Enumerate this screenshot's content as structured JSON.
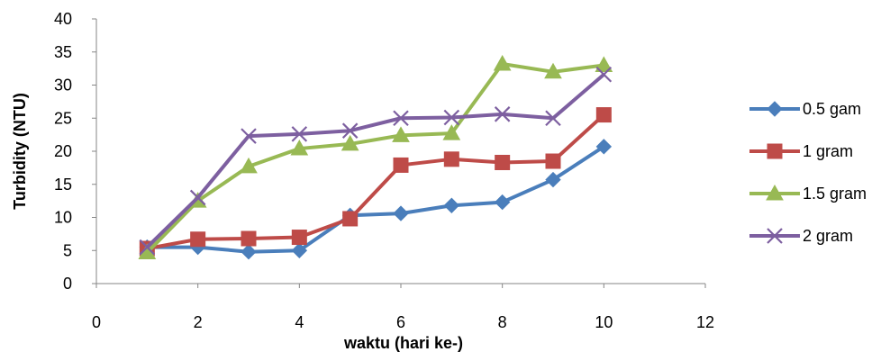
{
  "chart_data": {
    "type": "line",
    "title": "",
    "xlabel": "waktu (hari ke-)",
    "ylabel": "Turbidity (NTU)",
    "xlim": [
      0,
      12
    ],
    "ylim": [
      0,
      40
    ],
    "xticks": [
      0,
      2,
      4,
      6,
      8,
      10,
      12
    ],
    "yticks": [
      0,
      5,
      10,
      15,
      20,
      25,
      30,
      35,
      40
    ],
    "grid": false,
    "legend_position": "right",
    "x": [
      1,
      2,
      3,
      4,
      5,
      6,
      7,
      8,
      9,
      10
    ],
    "series": [
      {
        "name": "0.5 gam",
        "color": "#4a7ebb",
        "marker": "diamond",
        "values": [
          5.5,
          5.5,
          4.8,
          5.0,
          10.3,
          10.6,
          11.8,
          12.3,
          15.7,
          20.7
        ]
      },
      {
        "name": "1 gram",
        "color": "#be4b48",
        "marker": "square",
        "values": [
          5.3,
          6.7,
          6.8,
          7.0,
          9.8,
          17.9,
          18.8,
          18.3,
          18.5,
          25.5
        ]
      },
      {
        "name": "1.5 gram",
        "color": "#98b954",
        "marker": "triangle",
        "values": [
          4.7,
          12.5,
          17.7,
          20.4,
          21.1,
          22.4,
          22.7,
          33.2,
          32.0,
          33.0
        ]
      },
      {
        "name": "2 gram",
        "color": "#7d5fa0",
        "marker": "x",
        "values": [
          5.5,
          13.0,
          22.3,
          22.6,
          23.1,
          25.0,
          25.1,
          25.6,
          25.0,
          31.6
        ]
      }
    ]
  }
}
